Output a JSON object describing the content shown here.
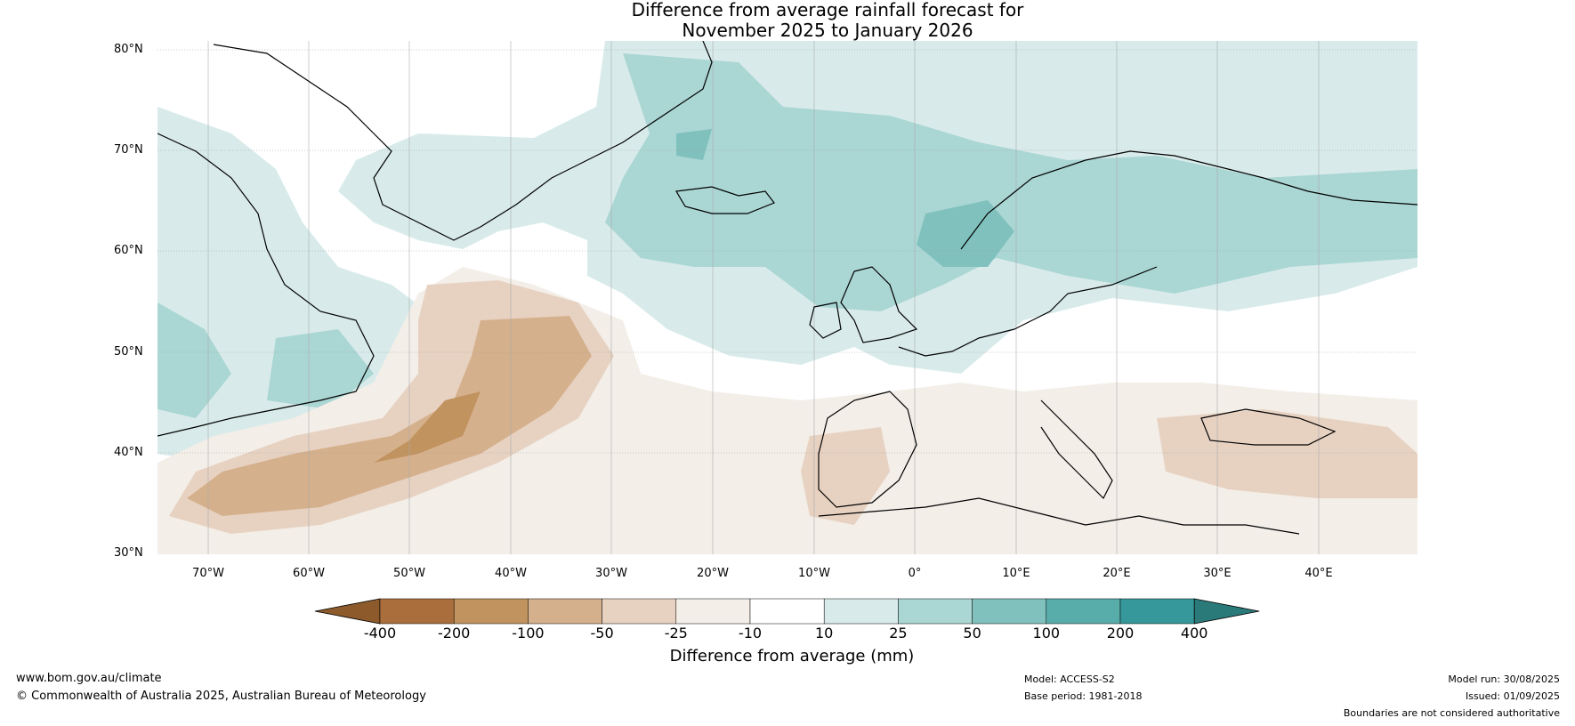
{
  "title_line1": "Difference from average rainfall forecast for",
  "title_line2": "November 2025 to January 2026",
  "lat_labels": [
    "80°N",
    "70°N",
    "60°N",
    "50°N",
    "40°N",
    "30°N"
  ],
  "lon_labels": [
    "70°W",
    "60°W",
    "50°W",
    "40°W",
    "30°W",
    "20°W",
    "10°W",
    "0°",
    "10°E",
    "20°E",
    "30°E",
    "40°E"
  ],
  "colorbar": {
    "ticks": [
      "-400",
      "-200",
      "-100",
      "-50",
      "-25",
      "-10",
      "10",
      "25",
      "50",
      "100",
      "200",
      "400"
    ],
    "colors": [
      "#8c5a2b",
      "#a96e3c",
      "#c1935f",
      "#d5b08c",
      "#e7d2c2",
      "#f3eee8",
      "#ffffff",
      "#d8ebea",
      "#aad6d4",
      "#80c1be",
      "#58acaa",
      "#36989a",
      "#2b7a7a"
    ],
    "label": "Difference from average (mm)"
  },
  "footer": {
    "website": "www.bom.gov.au/climate",
    "copyright": "© Commonwealth of Australia 2025, Australian Bureau of Meteorology",
    "model": "Model: ACCESS-S2",
    "base_period": "Base period: 1981-2018",
    "model_run": "Model run: 30/08/2025",
    "issued": "Issued: 01/09/2025",
    "disclaimer": "Boundaries are not considered authoritative"
  }
}
